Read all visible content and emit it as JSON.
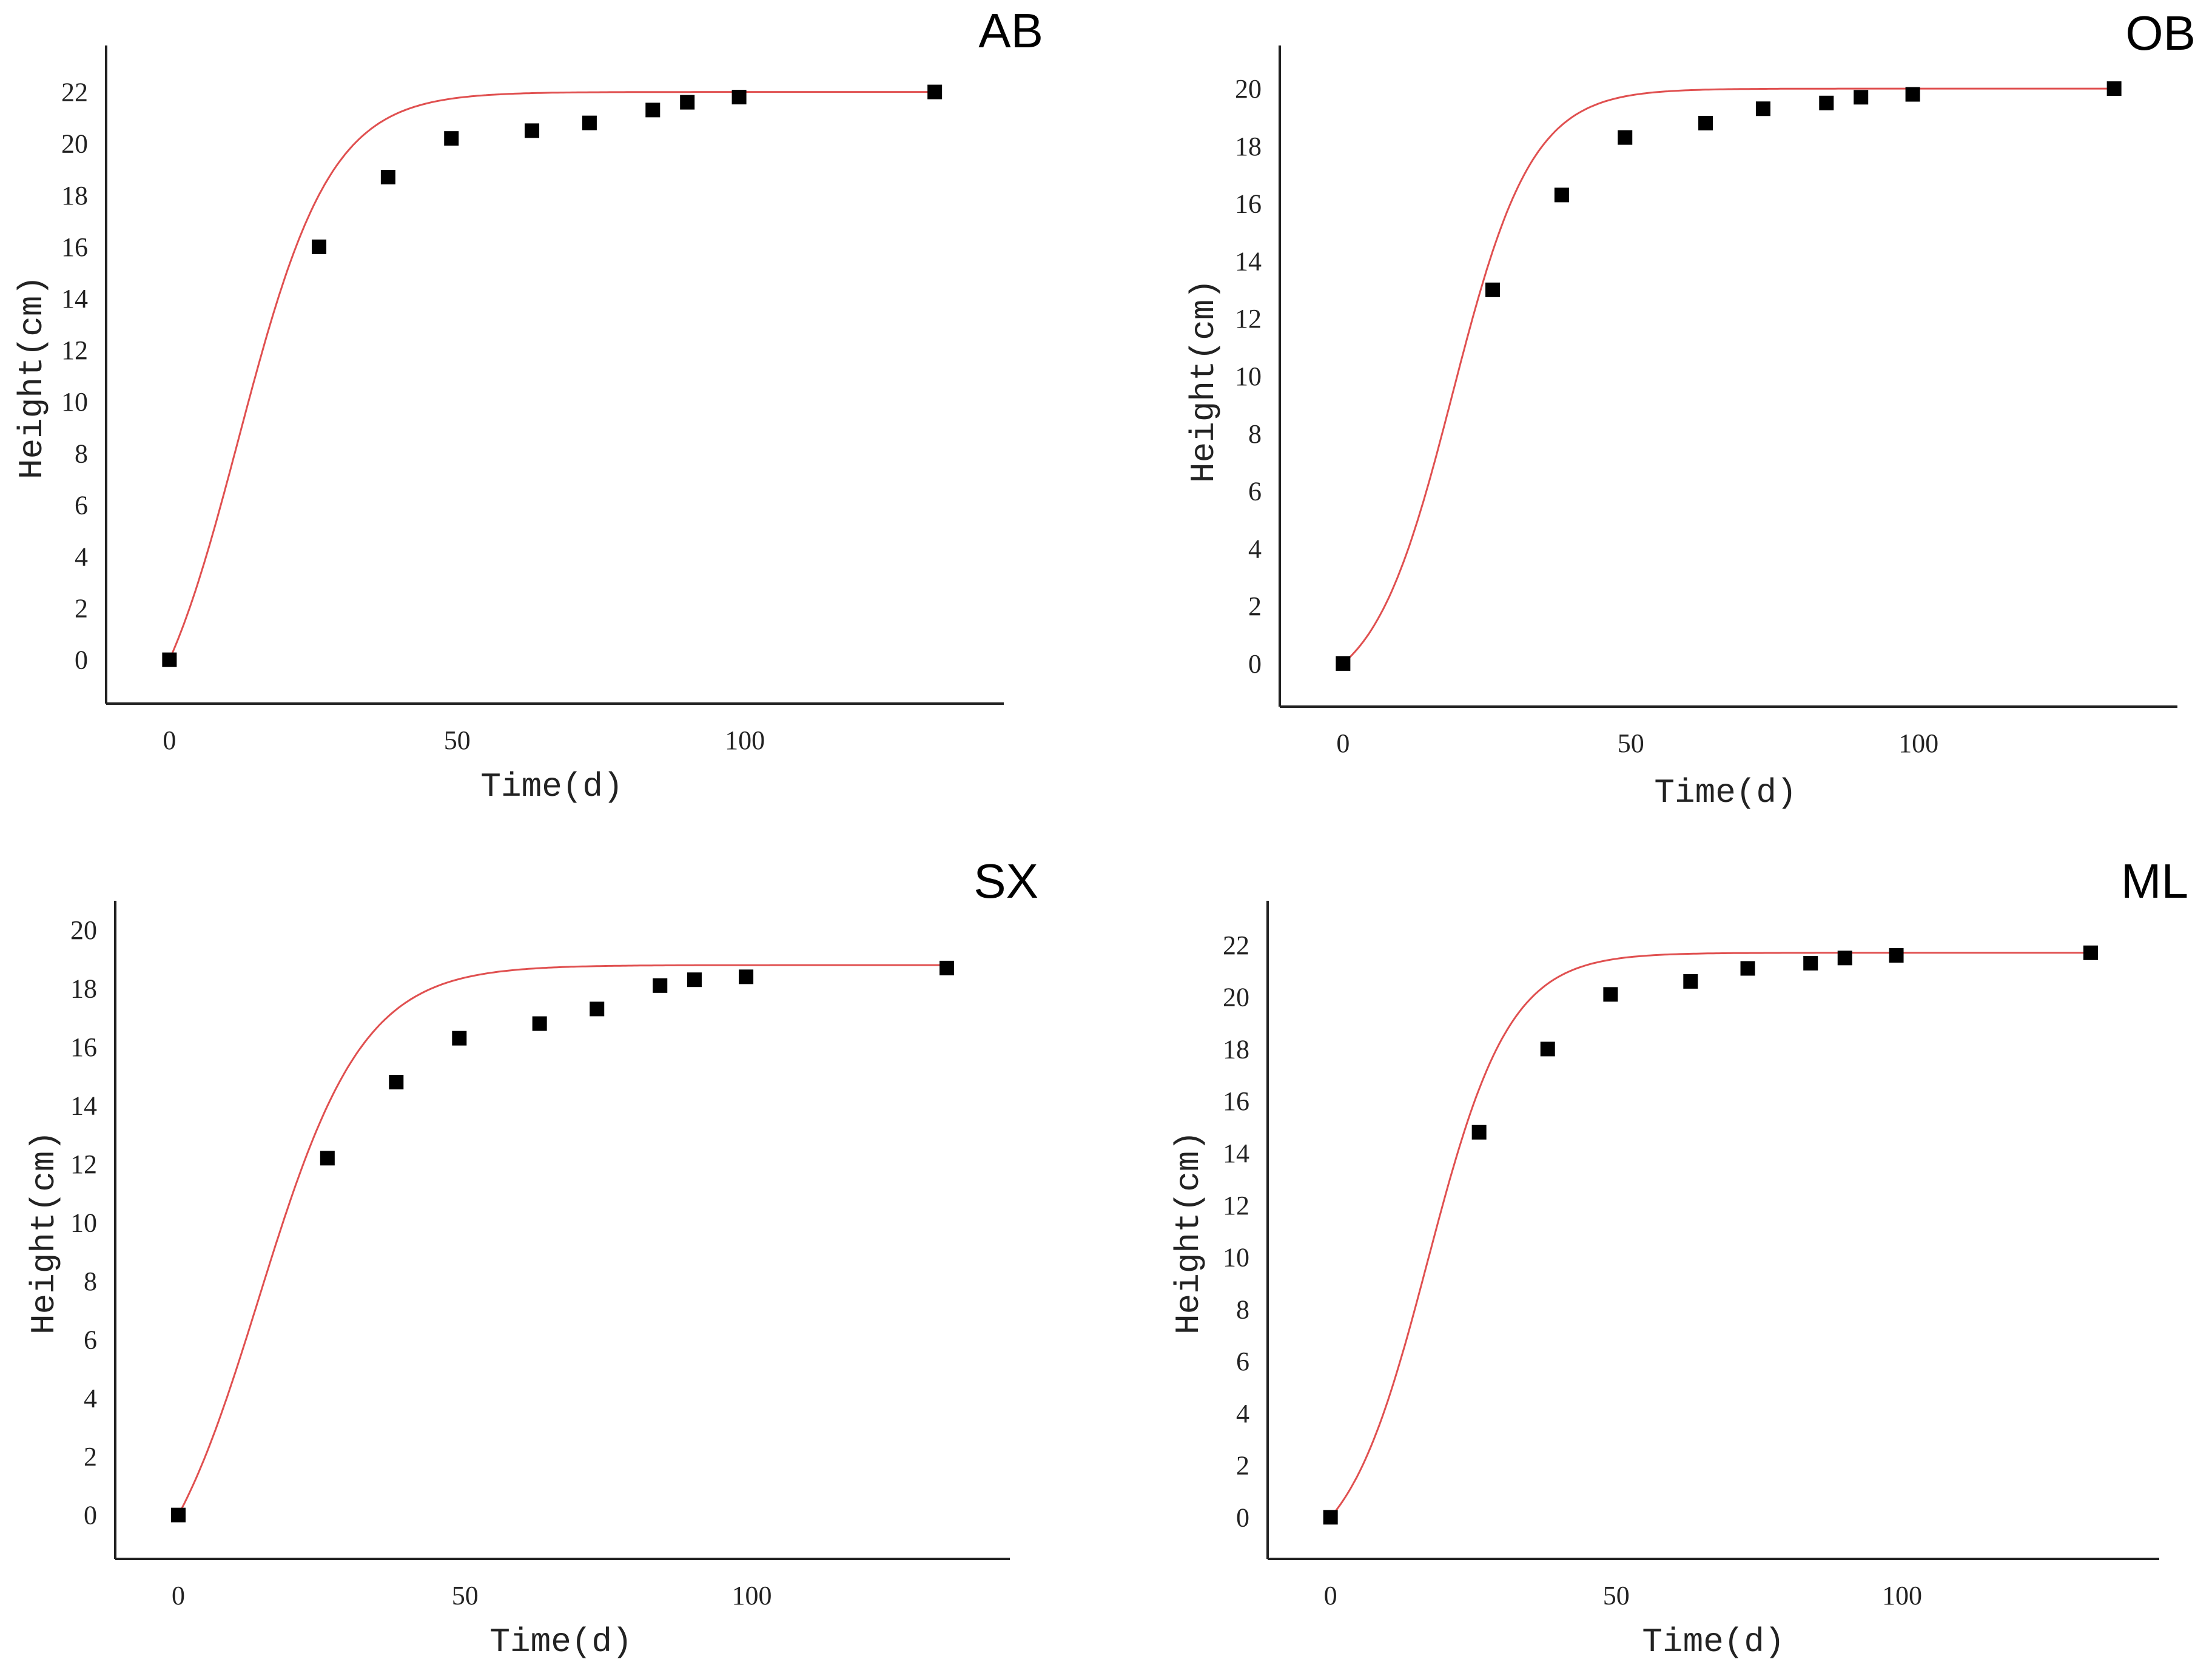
{
  "colors": {
    "curve": "#e05050",
    "marker": "#000000",
    "axis": "#222222",
    "background": "#ffffff"
  },
  "chart_data": [
    {
      "type": "scatter",
      "panel": "AB",
      "title": "AB",
      "xlabel": "Time(d)",
      "ylabel": "Height(cm)",
      "xlim": [
        -11,
        145
      ],
      "ylim": [
        -1.7,
        23.8
      ],
      "xticks": [
        "0",
        "50",
        "100"
      ],
      "yticks": [
        "0",
        "2",
        "4",
        "6",
        "8",
        "10",
        "12",
        "14",
        "16",
        "18",
        "20",
        "22"
      ],
      "grid": false,
      "x": [
        0,
        26,
        38,
        49,
        63,
        73,
        84,
        90,
        99,
        133
      ],
      "y": [
        0,
        16.0,
        18.7,
        20.2,
        20.5,
        20.8,
        21.3,
        21.6,
        21.8,
        22.0
      ],
      "fit": {
        "model": "logistic",
        "K": 22.0,
        "r": 0.125,
        "t0": 12
      }
    },
    {
      "type": "scatter",
      "panel": "OB",
      "title": "OB",
      "xlabel": "Time(d)",
      "ylabel": "Height(cm)",
      "xlim": [
        -11,
        145
      ],
      "ylim": [
        -1.5,
        21.5
      ],
      "xticks": [
        "0",
        "50",
        "100"
      ],
      "yticks": [
        "0",
        "2",
        "4",
        "6",
        "8",
        "10",
        "12",
        "14",
        "16",
        "18",
        "20"
      ],
      "grid": false,
      "x": [
        0,
        26,
        38,
        49,
        63,
        73,
        84,
        90,
        99,
        134
      ],
      "y": [
        0,
        13.0,
        16.3,
        18.3,
        18.8,
        19.3,
        19.5,
        19.7,
        19.8,
        20.0
      ],
      "fit": {
        "model": "logistic",
        "K": 20.0,
        "r": 0.145,
        "t0": 19
      }
    },
    {
      "type": "scatter",
      "panel": "SX",
      "title": "SX",
      "xlabel": "Time(d)",
      "ylabel": "Height(cm)",
      "xlim": [
        -11,
        145
      ],
      "ylim": [
        -1.5,
        21.0
      ],
      "xticks": [
        "0",
        "50",
        "100"
      ],
      "yticks": [
        "0",
        "2",
        "4",
        "6",
        "8",
        "10",
        "12",
        "14",
        "16",
        "18",
        "20"
      ],
      "grid": false,
      "x": [
        0,
        26,
        38,
        49,
        63,
        73,
        84,
        90,
        99,
        134
      ],
      "y": [
        0,
        12.2,
        14.8,
        16.3,
        16.8,
        17.3,
        18.1,
        18.3,
        18.4,
        18.7
      ],
      "fit": {
        "model": "logistic",
        "K": 18.8,
        "r": 0.11,
        "t0": 14
      }
    },
    {
      "type": "scatter",
      "panel": "ML",
      "title": "ML",
      "xlabel": "Time(d)",
      "ylabel": "Height(cm)",
      "xlim": [
        -11,
        145
      ],
      "ylim": [
        -1.6,
        23.7
      ],
      "xticks": [
        "0",
        "50",
        "100"
      ],
      "yticks": [
        "0",
        "2",
        "4",
        "6",
        "8",
        "10",
        "12",
        "14",
        "16",
        "18",
        "20",
        "22"
      ],
      "grid": false,
      "x": [
        0,
        26,
        38,
        49,
        63,
        73,
        84,
        90,
        99,
        133
      ],
      "y": [
        0,
        14.8,
        18.0,
        20.1,
        20.6,
        21.1,
        21.3,
        21.5,
        21.6,
        21.7
      ],
      "fit": {
        "model": "logistic",
        "K": 21.7,
        "r": 0.14,
        "t0": 17
      }
    }
  ]
}
